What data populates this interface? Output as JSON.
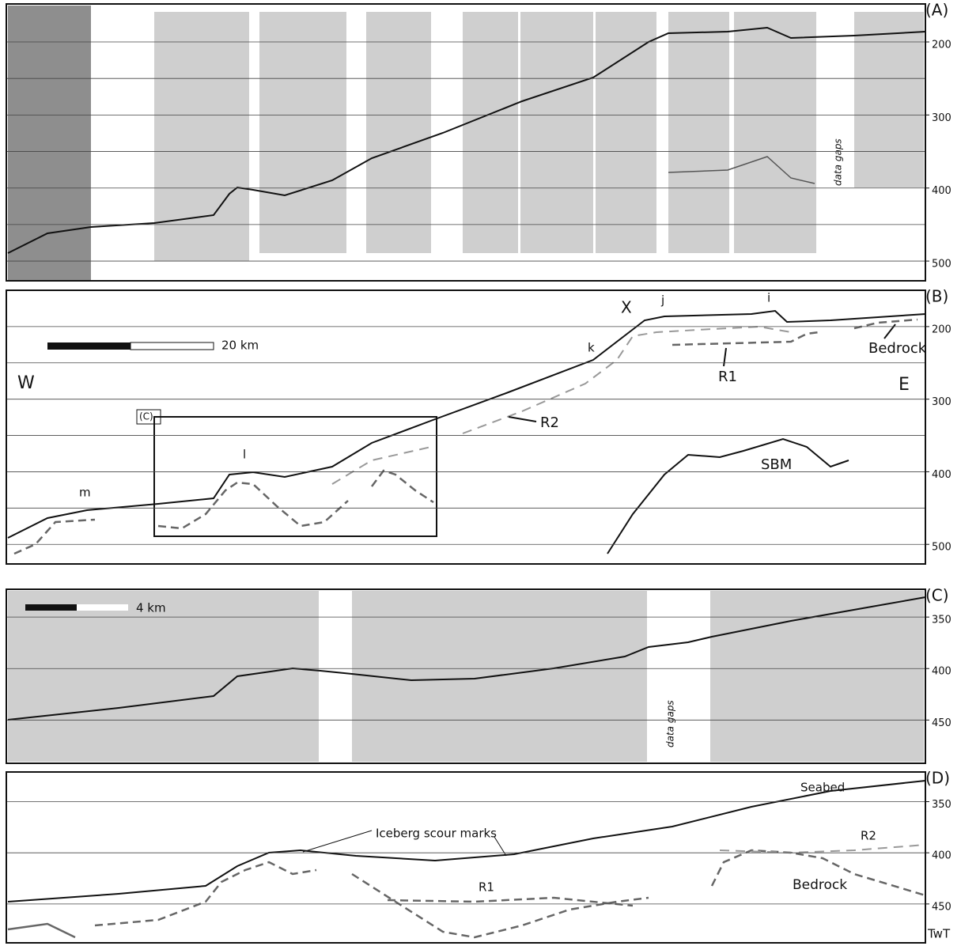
{
  "panels": [
    {
      "label": "(A)",
      "ylim": [
        148,
        527
      ],
      "grid": [
        200,
        250,
        300,
        350,
        400,
        450,
        500
      ],
      "yticks": [
        200,
        300,
        400,
        500
      ],
      "annotations": {
        "gap": "data gaps"
      }
    },
    {
      "label": "(B)",
      "ylim": [
        150,
        527
      ],
      "grid": [
        200,
        250,
        300,
        350,
        400,
        450,
        500
      ],
      "yticks": [
        200,
        300,
        400,
        500
      ],
      "annotations": {
        "scale": "20 km",
        "west": "W",
        "east": "E",
        "x": "X",
        "j": "j",
        "i": "i",
        "k": "k",
        "l": "l",
        "m": "m",
        "r1": "R1",
        "r2": "R2",
        "sbm": "SBM",
        "bedrock": "Bedrock",
        "box": "(C)"
      }
    },
    {
      "label": "(C)",
      "ylim": [
        323,
        492
      ],
      "grid": [
        350,
        400,
        450
      ],
      "yticks": [
        350,
        400,
        450
      ],
      "annotations": {
        "scale": "4 km",
        "gap": "data gaps"
      }
    },
    {
      "label": "(D)",
      "ylim": [
        321,
        488
      ],
      "grid": [
        350,
        400,
        450
      ],
      "yticks": [
        350,
        400,
        450
      ],
      "annotations": {
        "seabed": "Seabed",
        "scour": "Iceberg scour marks",
        "r1": "R1",
        "r2": "R2",
        "bedrock": "Bedrock",
        "twt": "TwT"
      }
    }
  ]
}
